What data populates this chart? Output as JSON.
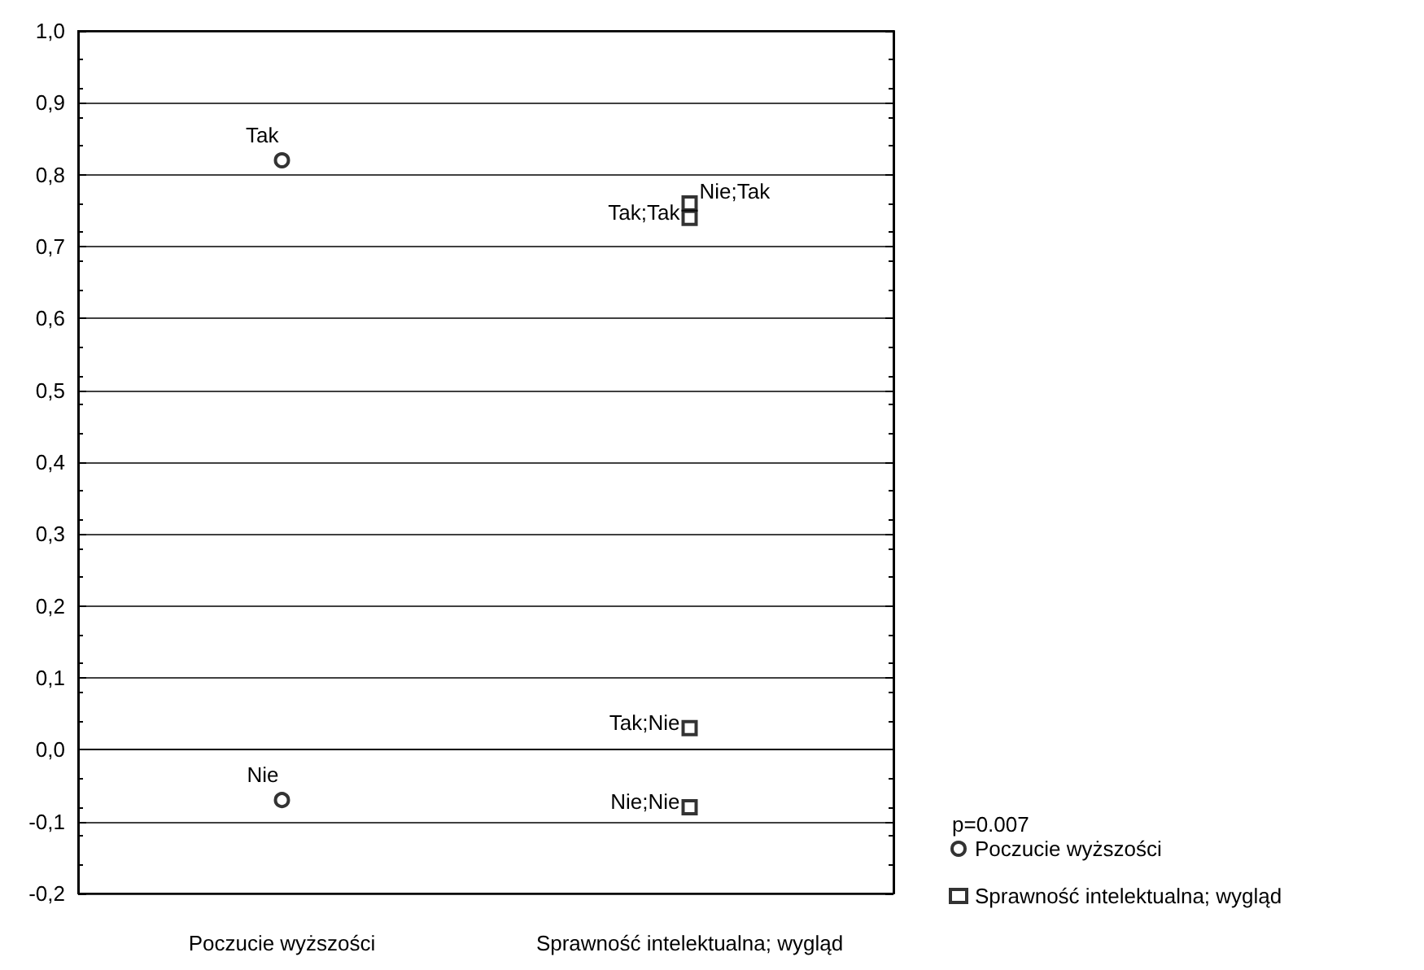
{
  "chart_data": {
    "type": "scatter",
    "categories": [
      "Poczucie wyższości",
      "Sprawność intelektualna; wygląd"
    ],
    "series": [
      {
        "name": "Poczucie wyższości",
        "color": "#000000",
        "marker": "circle",
        "x": [
          "Poczucie wyższości",
          "Poczucie wyższości"
        ],
        "values": [
          0.82,
          -0.07
        ]
      },
      {
        "name": "Sprawność intelektualna; wygląd",
        "color": "#000000",
        "marker": "square",
        "x": [
          "Sprawność intelektualna; wygląd",
          "Sprawność intelektualna; wygląd",
          "Sprawność intelektualna; wygląd",
          "Sprawność intelektualna; wygląd"
        ],
        "values": [
          0.76,
          0.74,
          0.03,
          -0.08
        ]
      }
    ],
    "ylim": [
      -0.2,
      1.0
    ],
    "yticks": [
      {
        "value": -0.2,
        "label": "-0,2"
      },
      {
        "value": -0.1,
        "label": "-0,1"
      },
      {
        "value": 0,
        "label": "0,0"
      },
      {
        "value": 0.1,
        "label": "0,1"
      },
      {
        "value": 0.2,
        "label": "0,2"
      },
      {
        "value": 0.3,
        "label": "0,3"
      },
      {
        "value": 0.4,
        "label": "0,4"
      },
      {
        "value": 0.5,
        "label": "0,5"
      },
      {
        "value": 0.6,
        "label": "0,6"
      },
      {
        "value": 0.7,
        "label": "0,7"
      },
      {
        "value": 0.8,
        "label": "0,8"
      },
      {
        "value": 0.9,
        "label": "0,9"
      },
      {
        "value": 1.0,
        "label": "1,0"
      }
    ],
    "grid": "y",
    "legend": "bottom right",
    "annotations": [
      {
        "text": "Tak",
        "x": "Poczucie wyższości",
        "y": 0.82
      },
      {
        "text": "Nie",
        "x": "Poczucie wyższości",
        "y": -0.07
      },
      {
        "text": "Nie;Tak",
        "x": "Sprawność intelektualna; wygląd",
        "y": 0.76
      },
      {
        "text": "Tak;Tak",
        "x": "Sprawność intelektualna; wygląd",
        "y": 0.74
      },
      {
        "text": "Tak;Nie",
        "x": "Sprawność intelektualna; wygląd",
        "y": 0.03
      },
      {
        "text": "Nie;Nie",
        "x": "Sprawność intelektualna; wygląd",
        "y": -0.08
      },
      "p=0.007"
    ]
  }
}
